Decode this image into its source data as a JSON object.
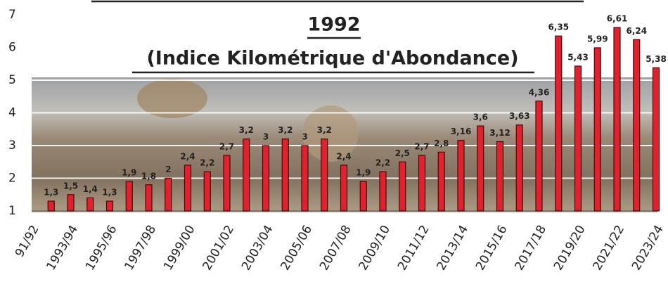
{
  "chart_data": {
    "type": "bar",
    "title": "1992",
    "subtitle": "(Indice Kilométrique d'Abondance)",
    "categories": [
      "91/92",
      null,
      "1993/94",
      null,
      "1995/96",
      null,
      "1997/98",
      null,
      "1999/00",
      null,
      "2001/02",
      null,
      "2003/04",
      null,
      "2005/06",
      null,
      "2007/08",
      null,
      "2009/10",
      null,
      "2011/12",
      null,
      "2013/14",
      null,
      "2015/16",
      null,
      "2017/18",
      null,
      "2019/20",
      null,
      "2021/22",
      null,
      "2023/24"
    ],
    "values": [
      null,
      1.3,
      1.5,
      1.4,
      1.3,
      1.9,
      1.8,
      2,
      2.4,
      2.2,
      2.7,
      3.2,
      3,
      3.2,
      3,
      3.2,
      2.4,
      1.9,
      2.2,
      2.5,
      2.7,
      2.8,
      3.16,
      3.6,
      3.12,
      3.63,
      4.36,
      6.35,
      5.43,
      5.99,
      6.61,
      6.24,
      5.38
    ],
    "value_labels": [
      null,
      "1,3",
      "1,5",
      "1,4",
      "1,3",
      "1,9",
      "1,8",
      "2",
      "2,4",
      "2,2",
      "2,7",
      "3,2",
      "3",
      "3,2",
      "3",
      "3,2",
      "2,4",
      "1,9",
      "2,2",
      "2,5",
      "2,7",
      "2,8",
      "3,16",
      "3,6",
      "3,12",
      "3,63",
      "4,36",
      "6,35",
      "5,43",
      "5,99",
      "6,61",
      "6,24",
      "5,38"
    ],
    "color": "#e3202b",
    "ylim": [
      1,
      7
    ],
    "yticks": [
      1,
      2,
      3,
      4,
      5,
      6,
      7
    ],
    "grid": true
  }
}
